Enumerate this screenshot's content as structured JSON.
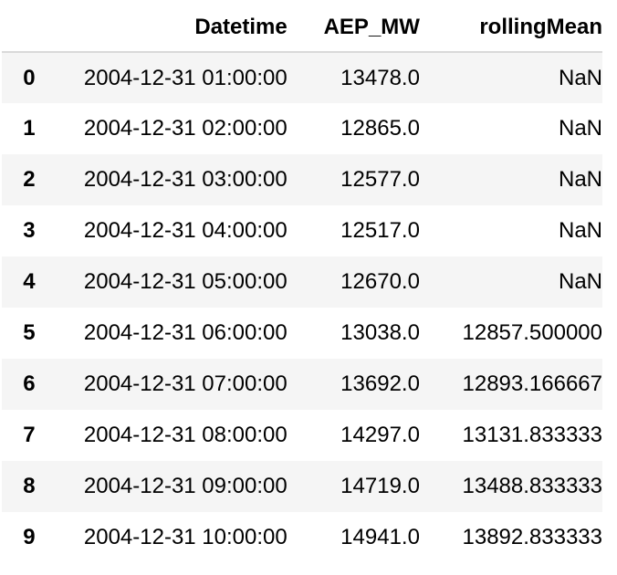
{
  "table": {
    "columns": [
      "",
      "Datetime",
      "AEP_MW",
      "rollingMean"
    ],
    "rows": [
      {
        "index": "0",
        "datetime": "2004-12-31 01:00:00",
        "aep_mw": "13478.0",
        "rolling_mean": "NaN"
      },
      {
        "index": "1",
        "datetime": "2004-12-31 02:00:00",
        "aep_mw": "12865.0",
        "rolling_mean": "NaN"
      },
      {
        "index": "2",
        "datetime": "2004-12-31 03:00:00",
        "aep_mw": "12577.0",
        "rolling_mean": "NaN"
      },
      {
        "index": "3",
        "datetime": "2004-12-31 04:00:00",
        "aep_mw": "12517.0",
        "rolling_mean": "NaN"
      },
      {
        "index": "4",
        "datetime": "2004-12-31 05:00:00",
        "aep_mw": "12670.0",
        "rolling_mean": "NaN"
      },
      {
        "index": "5",
        "datetime": "2004-12-31 06:00:00",
        "aep_mw": "13038.0",
        "rolling_mean": "12857.500000"
      },
      {
        "index": "6",
        "datetime": "2004-12-31 07:00:00",
        "aep_mw": "13692.0",
        "rolling_mean": "12893.166667"
      },
      {
        "index": "7",
        "datetime": "2004-12-31 08:00:00",
        "aep_mw": "14297.0",
        "rolling_mean": "13131.833333"
      },
      {
        "index": "8",
        "datetime": "2004-12-31 09:00:00",
        "aep_mw": "14719.0",
        "rolling_mean": "13488.833333"
      },
      {
        "index": "9",
        "datetime": "2004-12-31 10:00:00",
        "aep_mw": "14941.0",
        "rolling_mean": "13892.833333"
      }
    ]
  },
  "colors": {
    "stripe": "#f5f5f5",
    "header_border": "#d9d9d9",
    "text": "#000000"
  }
}
